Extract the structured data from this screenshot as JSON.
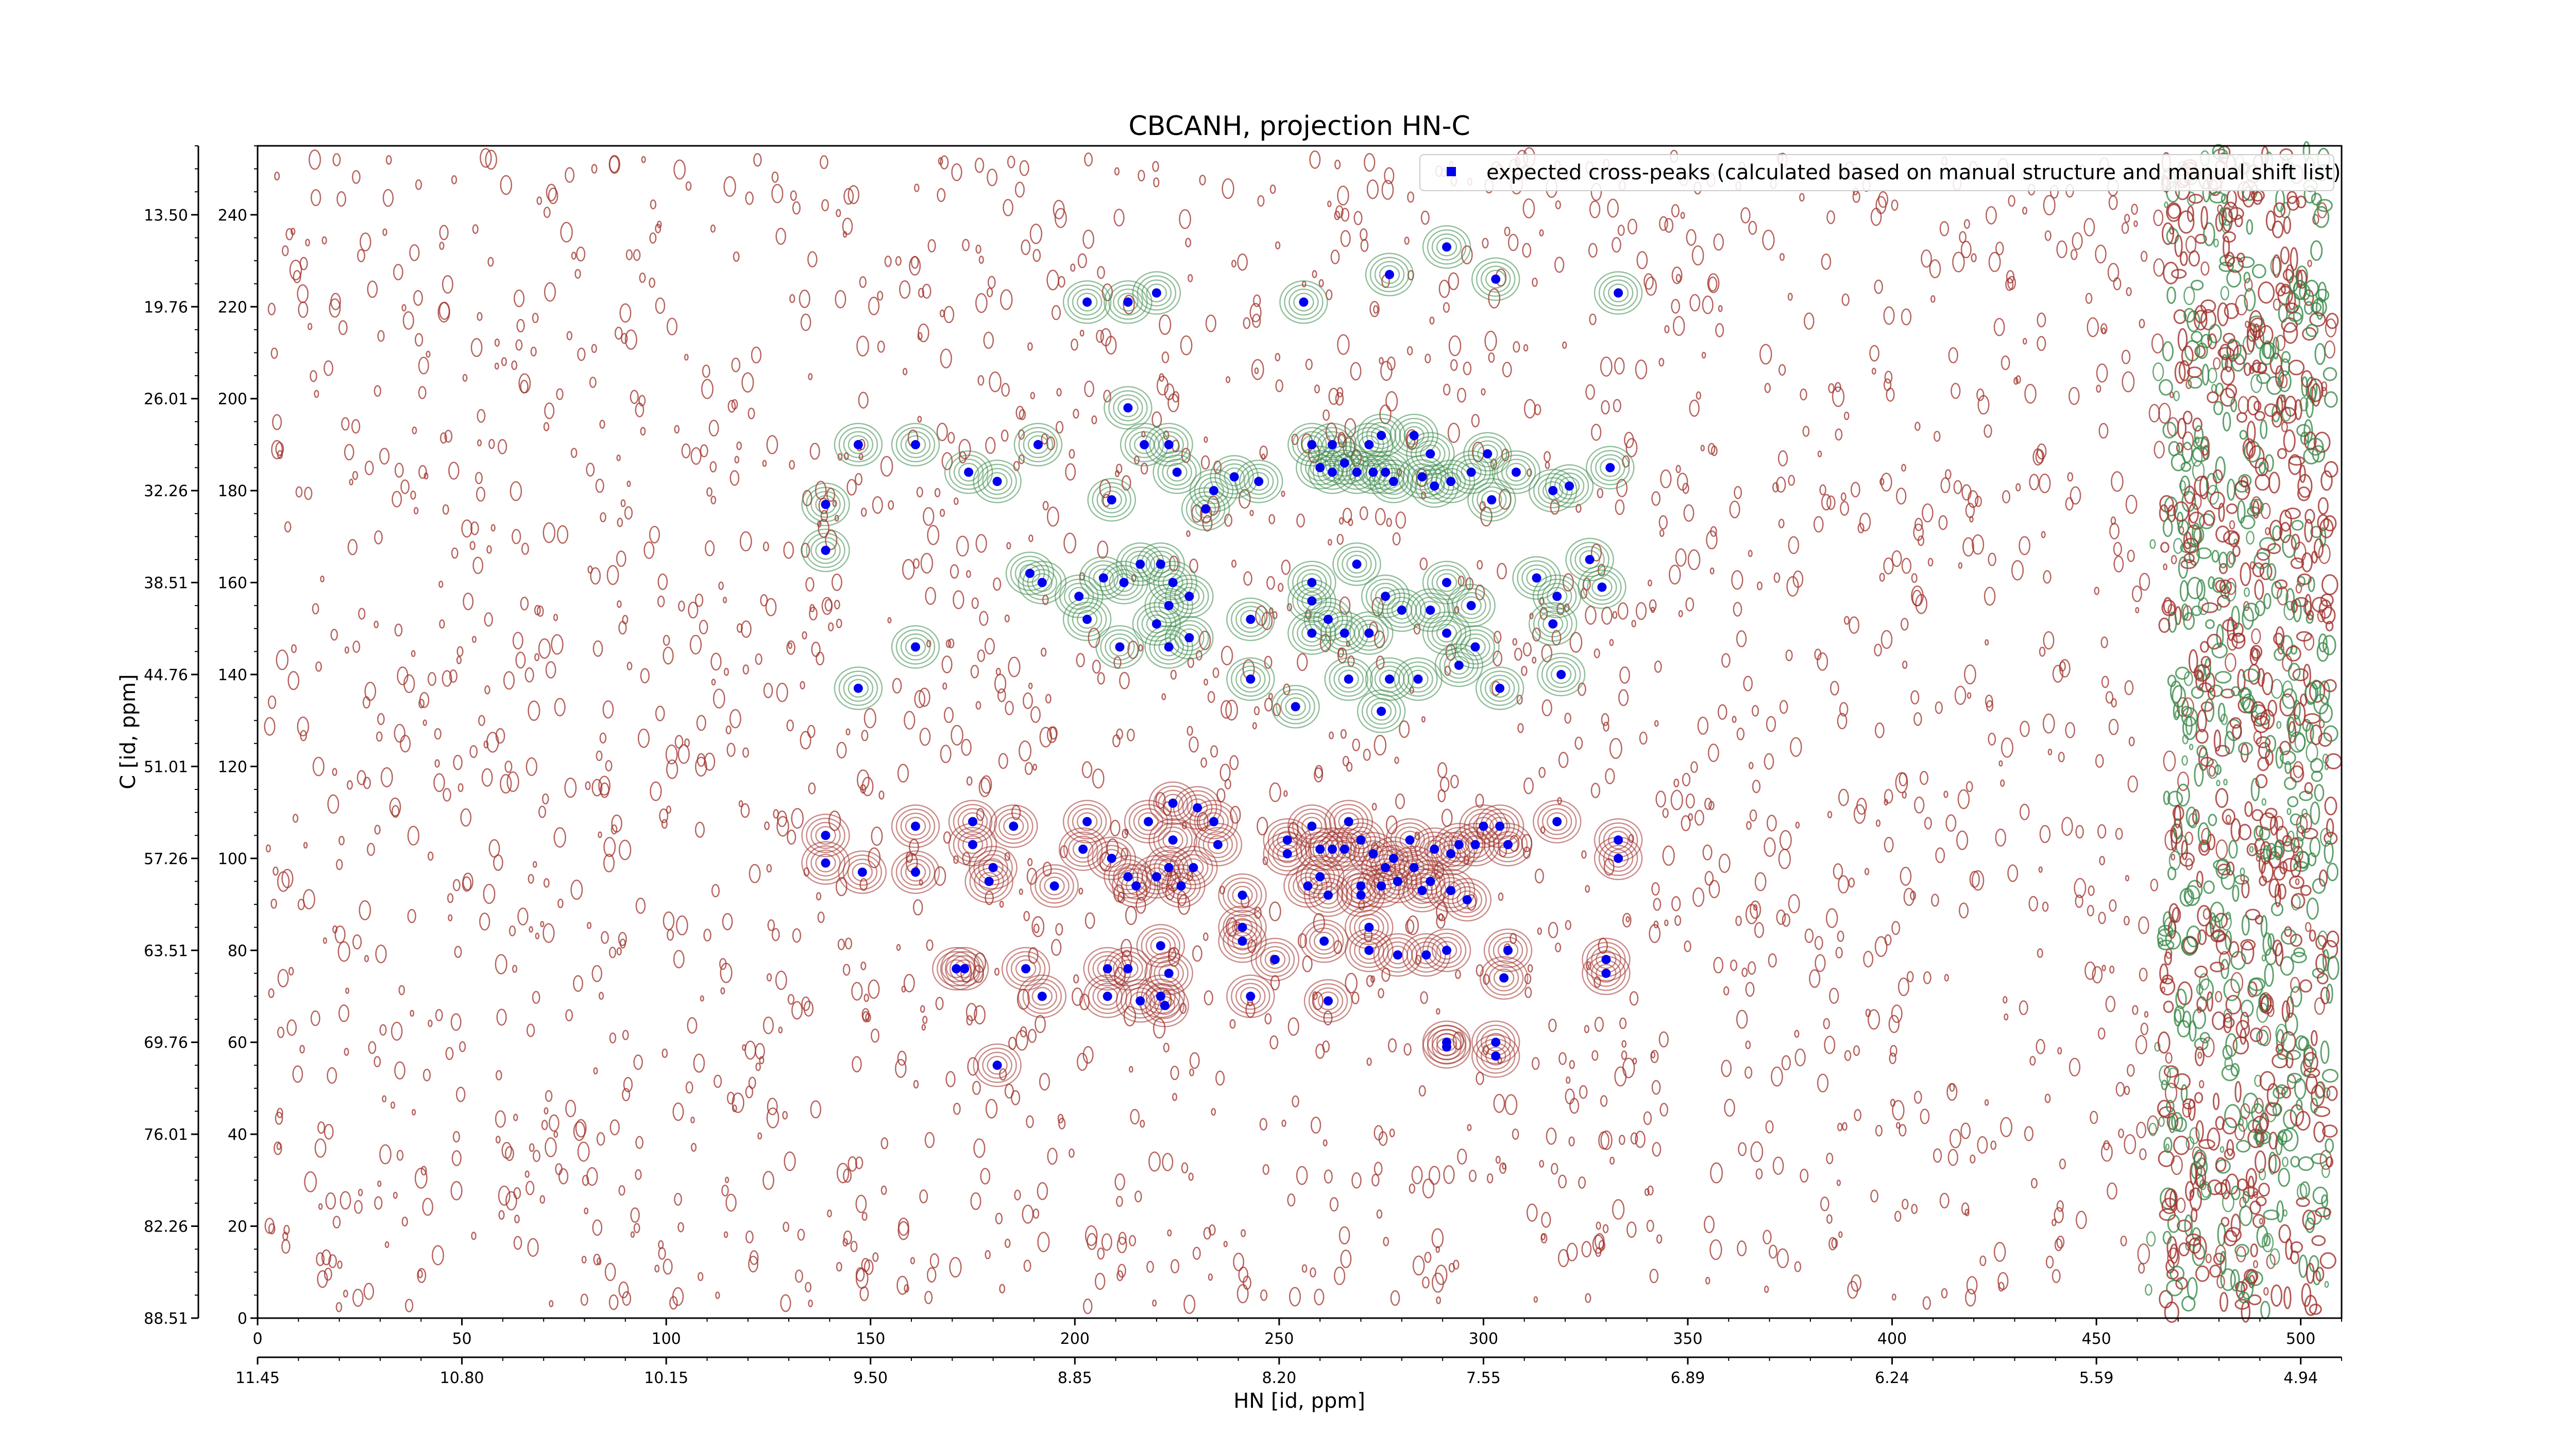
{
  "chart_data": {
    "type": "scatter",
    "title": "CBCANH, projection HN-C",
    "xlabel": "HN [id, ppm]",
    "ylabel": "C [id, ppm]",
    "x_index_range": [
      0,
      510
    ],
    "y_index_range": [
      0,
      255
    ],
    "x_index_ticks": [
      "0",
      "50",
      "100",
      "150",
      "200",
      "250",
      "300",
      "350",
      "400",
      "450",
      "500"
    ],
    "x_ppm_ticks": [
      "11.45",
      "10.80",
      "10.15",
      "9.50",
      "8.85",
      "8.20",
      "7.55",
      "6.89",
      "6.24",
      "5.59",
      "4.94"
    ],
    "y_index_ticks": [
      "0",
      "20",
      "40",
      "60",
      "80",
      "100",
      "120",
      "140",
      "160",
      "180",
      "200",
      "220",
      "240"
    ],
    "y_ppm_ticks": [
      "88.51",
      "82.26",
      "76.01",
      "69.76",
      "63.51",
      "57.26",
      "51.01",
      "44.76",
      "38.51",
      "32.26",
      "26.01",
      "19.76",
      "13.50"
    ],
    "legend": {
      "label": "expected cross-peaks (calculated based on manual structure and manual shift list)",
      "placement": "top-right"
    },
    "colors": {
      "marker": "#0000ee",
      "positive_contour": "#a0302a",
      "negative_contour": "#3a8a4a",
      "frame": "#000000"
    },
    "series": [
      {
        "name": "expected cross-peaks (calculated based on manual structure and manual shift list)",
        "points": [
          [
            203,
            221
          ],
          [
            213,
            221
          ],
          [
            220,
            223
          ],
          [
            256,
            221
          ],
          [
            277,
            227
          ],
          [
            291,
            233
          ],
          [
            303,
            226
          ],
          [
            333,
            223
          ],
          [
            147,
            190
          ],
          [
            161,
            190
          ],
          [
            191,
            190
          ],
          [
            213,
            198
          ],
          [
            217,
            190
          ],
          [
            223,
            190
          ],
          [
            225,
            184
          ],
          [
            181,
            182
          ],
          [
            174,
            184
          ],
          [
            234,
            180
          ],
          [
            239,
            183
          ],
          [
            245,
            182
          ],
          [
            139,
            177
          ],
          [
            139,
            167
          ],
          [
            209,
            178
          ],
          [
            232,
            176
          ],
          [
            258,
            190
          ],
          [
            263,
            190
          ],
          [
            272,
            190
          ],
          [
            275,
            192
          ],
          [
            283,
            192
          ],
          [
            287,
            188
          ],
          [
            292,
            182
          ],
          [
            297,
            184
          ],
          [
            301,
            188
          ],
          [
            302,
            178
          ],
          [
            308,
            184
          ],
          [
            317,
            180
          ],
          [
            321,
            181
          ],
          [
            331,
            185
          ],
          [
            260,
            185
          ],
          [
            263,
            184
          ],
          [
            266,
            186
          ],
          [
            269,
            184
          ],
          [
            273,
            184
          ],
          [
            276,
            184
          ],
          [
            278,
            182
          ],
          [
            285,
            183
          ],
          [
            288,
            181
          ],
          [
            189,
            162
          ],
          [
            192,
            160
          ],
          [
            201,
            157
          ],
          [
            207,
            161
          ],
          [
            212,
            160
          ],
          [
            216,
            164
          ],
          [
            221,
            164
          ],
          [
            224,
            160
          ],
          [
            228,
            157
          ],
          [
            203,
            152
          ],
          [
            211,
            146
          ],
          [
            223,
            146
          ],
          [
            228,
            148
          ],
          [
            220,
            151
          ],
          [
            223,
            155
          ],
          [
            243,
            152
          ],
          [
            161,
            146
          ],
          [
            258,
            160
          ],
          [
            258,
            156
          ],
          [
            262,
            152
          ],
          [
            258,
            149
          ],
          [
            266,
            149
          ],
          [
            272,
            149
          ],
          [
            276,
            157
          ],
          [
            280,
            154
          ],
          [
            287,
            154
          ],
          [
            291,
            160
          ],
          [
            297,
            155
          ],
          [
            298,
            146
          ],
          [
            291,
            149
          ],
          [
            294,
            142
          ],
          [
            313,
            161
          ],
          [
            317,
            151
          ],
          [
            318,
            157
          ],
          [
            326,
            165
          ],
          [
            329,
            159
          ],
          [
            269,
            164
          ],
          [
            147,
            137
          ],
          [
            243,
            139
          ],
          [
            254,
            133
          ],
          [
            267,
            139
          ],
          [
            277,
            139
          ],
          [
            275,
            132
          ],
          [
            284,
            139
          ],
          [
            304,
            137
          ],
          [
            319,
            140
          ],
          [
            139,
            105
          ],
          [
            139,
            99
          ],
          [
            148,
            97
          ],
          [
            161,
            107
          ],
          [
            175,
            108
          ],
          [
            161,
            97
          ],
          [
            175,
            103
          ],
          [
            180,
            98
          ],
          [
            179,
            95
          ],
          [
            185,
            107
          ],
          [
            195,
            94
          ],
          [
            203,
            108
          ],
          [
            202,
            102
          ],
          [
            209,
            100
          ],
          [
            213,
            96
          ],
          [
            218,
            108
          ],
          [
            223,
            98
          ],
          [
            224,
            104
          ],
          [
            226,
            94
          ],
          [
            229,
            98
          ],
          [
            220,
            96
          ],
          [
            215,
            94
          ],
          [
            224,
            112
          ],
          [
            230,
            111
          ],
          [
            234,
            108
          ],
          [
            235,
            103
          ],
          [
            241,
            92
          ],
          [
            252,
            104
          ],
          [
            252,
            101
          ],
          [
            258,
            107
          ],
          [
            260,
            102
          ],
          [
            260,
            96
          ],
          [
            263,
            102
          ],
          [
            266,
            102
          ],
          [
            267,
            108
          ],
          [
            270,
            104
          ],
          [
            276,
            98
          ],
          [
            273,
            101
          ],
          [
            270,
            94
          ],
          [
            278,
            100
          ],
          [
            282,
            104
          ],
          [
            283,
            98
          ],
          [
            285,
            93
          ],
          [
            288,
            102
          ],
          [
            292,
            93
          ],
          [
            292,
            101
          ],
          [
            294,
            103
          ],
          [
            298,
            103
          ],
          [
            300,
            107
          ],
          [
            304,
            107
          ],
          [
            306,
            103
          ],
          [
            318,
            108
          ],
          [
            333,
            104
          ],
          [
            333,
            100
          ],
          [
            257,
            94
          ],
          [
            262,
            92
          ],
          [
            270,
            92
          ],
          [
            275,
            94
          ],
          [
            279,
            95
          ],
          [
            287,
            95
          ],
          [
            296,
            91
          ],
          [
            241,
            85
          ],
          [
            241,
            82
          ],
          [
            249,
            78
          ],
          [
            221,
            81
          ],
          [
            261,
            82
          ],
          [
            272,
            80
          ],
          [
            272,
            85
          ],
          [
            279,
            79
          ],
          [
            286,
            79
          ],
          [
            291,
            80
          ],
          [
            306,
            80
          ],
          [
            171,
            76
          ],
          [
            188,
            76
          ],
          [
            208,
            76
          ],
          [
            213,
            76
          ],
          [
            223,
            75
          ],
          [
            305,
            74
          ],
          [
            330,
            78
          ],
          [
            330,
            75
          ],
          [
            243,
            70
          ],
          [
            216,
            69
          ],
          [
            222,
            68
          ],
          [
            221,
            70
          ],
          [
            262,
            69
          ],
          [
            208,
            70
          ],
          [
            192,
            70
          ],
          [
            173,
            76
          ],
          [
            291,
            59
          ],
          [
            291,
            60
          ],
          [
            303,
            60
          ],
          [
            303,
            57
          ],
          [
            181,
            55
          ]
        ]
      }
    ]
  }
}
